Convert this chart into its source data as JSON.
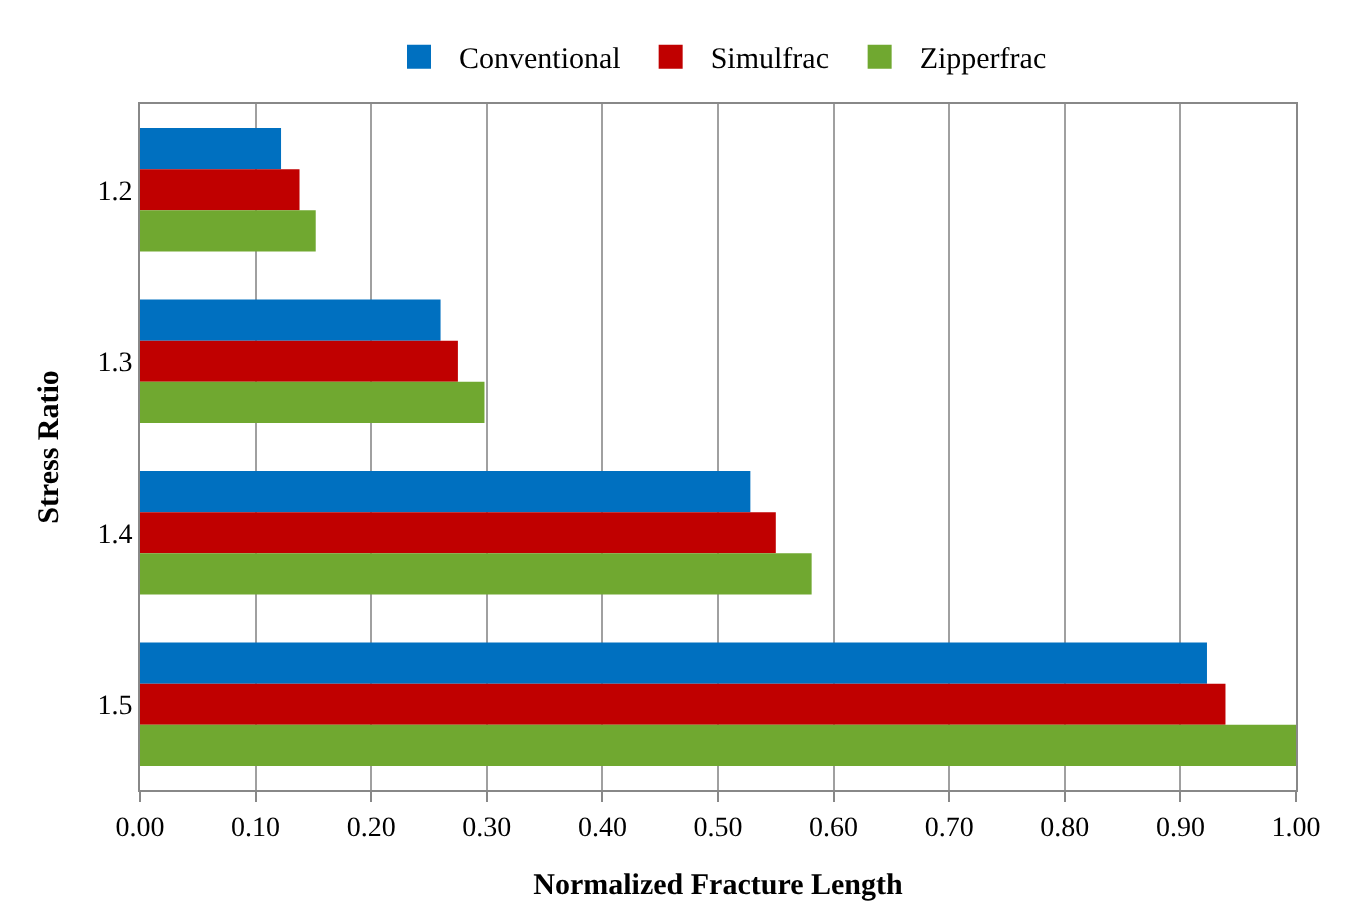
{
  "chart_data": {
    "type": "bar",
    "orientation": "horizontal",
    "xlabel": "Normalized Fracture Length",
    "ylabel": "Stress Ratio",
    "categories": [
      "1.2",
      "1.3",
      "1.4",
      "1.5"
    ],
    "series": [
      {
        "name": "Conventional",
        "color": "#0070c0",
        "values": [
          0.122,
          0.26,
          0.528,
          0.923
        ]
      },
      {
        "name": "Simulfrac",
        "color": "#c00000",
        "values": [
          0.138,
          0.275,
          0.55,
          0.939
        ]
      },
      {
        "name": "Zipperfrac",
        "color": "#70a830",
        "values": [
          0.152,
          0.298,
          0.581,
          1.0
        ]
      }
    ],
    "xlim": [
      0,
      1
    ],
    "xticks": [
      {
        "value": 0,
        "label": "0.00"
      },
      {
        "value": 0.1,
        "label": "0.10"
      },
      {
        "value": 0.2,
        "label": "0.20"
      },
      {
        "value": 0.3,
        "label": "0.30"
      },
      {
        "value": 0.4,
        "label": "0.40"
      },
      {
        "value": 0.5,
        "label": "0.50"
      },
      {
        "value": 0.6,
        "label": "0.60"
      },
      {
        "value": 0.7,
        "label": "0.70"
      },
      {
        "value": 0.8,
        "label": "0.80"
      },
      {
        "value": 0.9,
        "label": "0.90"
      },
      {
        "value": 1,
        "label": "1.00"
      }
    ],
    "grid": "x",
    "legend": "top"
  }
}
